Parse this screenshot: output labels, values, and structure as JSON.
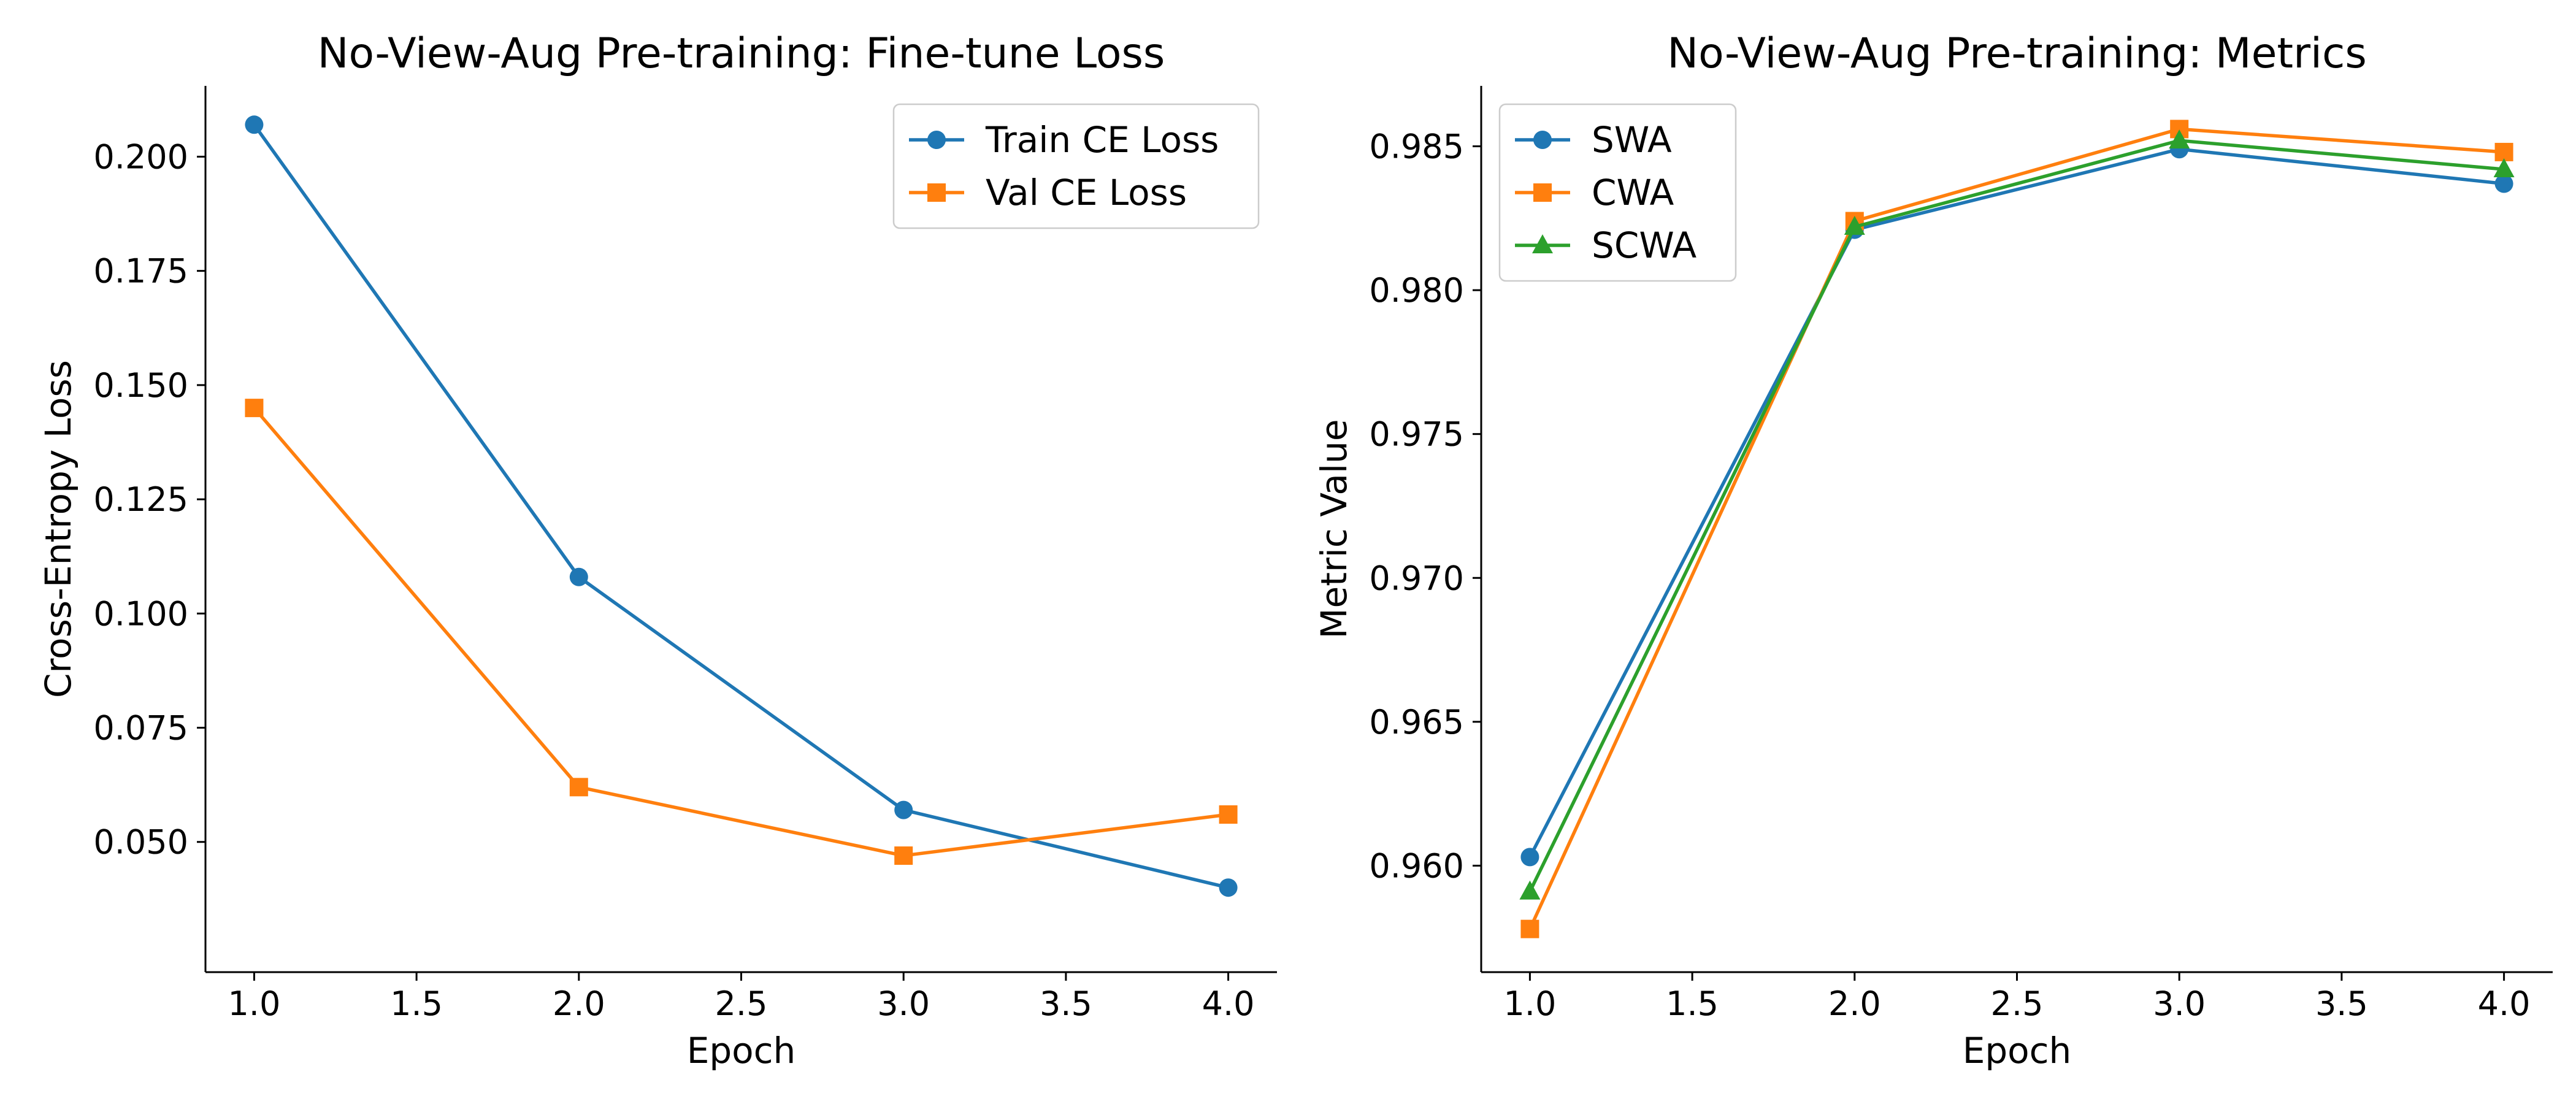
{
  "chart_data": [
    {
      "type": "line",
      "title": "No-View-Aug Pre-training: Fine-tune Loss",
      "xlabel": "Epoch",
      "ylabel": "Cross-Entropy Loss",
      "x": [
        1.0,
        2.0,
        3.0,
        4.0
      ],
      "xlim": [
        0.85,
        4.15
      ],
      "ylim": [
        0.0215,
        0.2155
      ],
      "xticks": [
        1.0,
        1.5,
        2.0,
        2.5,
        3.0,
        3.5,
        4.0
      ],
      "xtick_labels": [
        "1.0",
        "1.5",
        "2.0",
        "2.5",
        "3.0",
        "3.5",
        "4.0"
      ],
      "yticks": [
        0.05,
        0.075,
        0.1,
        0.125,
        0.15,
        0.175,
        0.2
      ],
      "ytick_labels": [
        "0.050",
        "0.075",
        "0.100",
        "0.125",
        "0.150",
        "0.175",
        "0.200"
      ],
      "grid": false,
      "legend_position": "upper-right",
      "series": [
        {
          "name": "Train CE Loss",
          "color": "#1f77b4",
          "marker": "circle",
          "values": [
            0.207,
            0.108,
            0.057,
            0.04
          ]
        },
        {
          "name": "Val CE Loss",
          "color": "#ff7f0e",
          "marker": "square",
          "values": [
            0.145,
            0.062,
            0.047,
            0.056
          ]
        }
      ]
    },
    {
      "type": "line",
      "title": "No-View-Aug Pre-training: Metrics",
      "xlabel": "Epoch",
      "ylabel": "Metric Value",
      "x": [
        1.0,
        2.0,
        3.0,
        4.0
      ],
      "xlim": [
        0.85,
        4.15
      ],
      "ylim": [
        0.9563,
        0.9871
      ],
      "xticks": [
        1.0,
        1.5,
        2.0,
        2.5,
        3.0,
        3.5,
        4.0
      ],
      "xtick_labels": [
        "1.0",
        "1.5",
        "2.0",
        "2.5",
        "3.0",
        "3.5",
        "4.0"
      ],
      "yticks": [
        0.96,
        0.965,
        0.97,
        0.975,
        0.98,
        0.985
      ],
      "ytick_labels": [
        "0.960",
        "0.965",
        "0.970",
        "0.975",
        "0.980",
        "0.985"
      ],
      "grid": false,
      "legend_position": "upper-left",
      "series": [
        {
          "name": "SWA",
          "color": "#1f77b4",
          "marker": "circle",
          "values": [
            0.9603,
            0.9821,
            0.9849,
            0.9837
          ]
        },
        {
          "name": "CWA",
          "color": "#ff7f0e",
          "marker": "square",
          "values": [
            0.9578,
            0.9824,
            0.9856,
            0.9848
          ]
        },
        {
          "name": "SCWA",
          "color": "#2ca02c",
          "marker": "triangle",
          "values": [
            0.9591,
            0.9822,
            0.9852,
            0.9842
          ]
        }
      ]
    }
  ]
}
